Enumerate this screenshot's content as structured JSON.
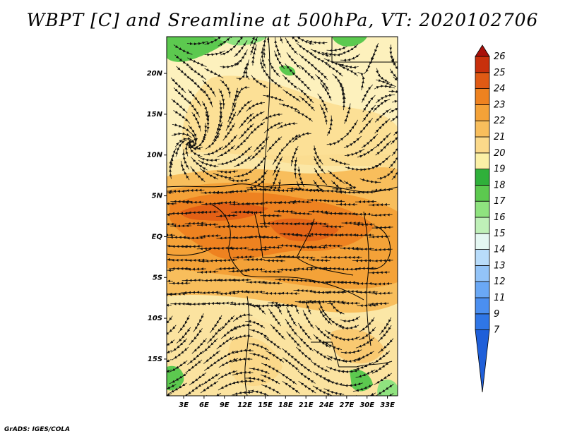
{
  "title": "WBPT [C] and Sreamline at 500hPa, VT: 2020102706",
  "credit": "GrADS: IGES/COLA",
  "map": {
    "lat_labels": [
      "20N",
      "15N",
      "10N",
      "5N",
      "EQ",
      "5S",
      "10S",
      "15S"
    ],
    "lon_labels": [
      "3E",
      "6E",
      "9E",
      "12E",
      "15E",
      "18E",
      "21E",
      "24E",
      "27E",
      "30E",
      "33E"
    ],
    "lat_values": [
      20,
      15,
      10,
      5,
      0,
      -5,
      -10,
      -15
    ],
    "lon_values": [
      3,
      6,
      9,
      12,
      15,
      18,
      21,
      24,
      27,
      30,
      33
    ],
    "lat_range": [
      -19.5,
      24.5
    ],
    "lon_range": [
      0.5,
      34.5
    ]
  },
  "colorbar": {
    "levels": [
      "7",
      "9",
      "11",
      "12",
      "13",
      "14",
      "15",
      "16",
      "17",
      "18",
      "19",
      "20",
      "21",
      "22",
      "23",
      "24",
      "25",
      "26"
    ],
    "colors": [
      "#1f5fd9",
      "#2f76e6",
      "#4b8ff0",
      "#6aa8f5",
      "#93c4f8",
      "#b8dcfa",
      "#e4f7f2",
      "#bff0b8",
      "#8fe37f",
      "#5cc94f",
      "#2fb03a",
      "#fbf0a6",
      "#fbd98a",
      "#f8be5c",
      "#f4a238",
      "#ee8220",
      "#e05a14",
      "#c8300c",
      "#a8100a"
    ]
  }
}
